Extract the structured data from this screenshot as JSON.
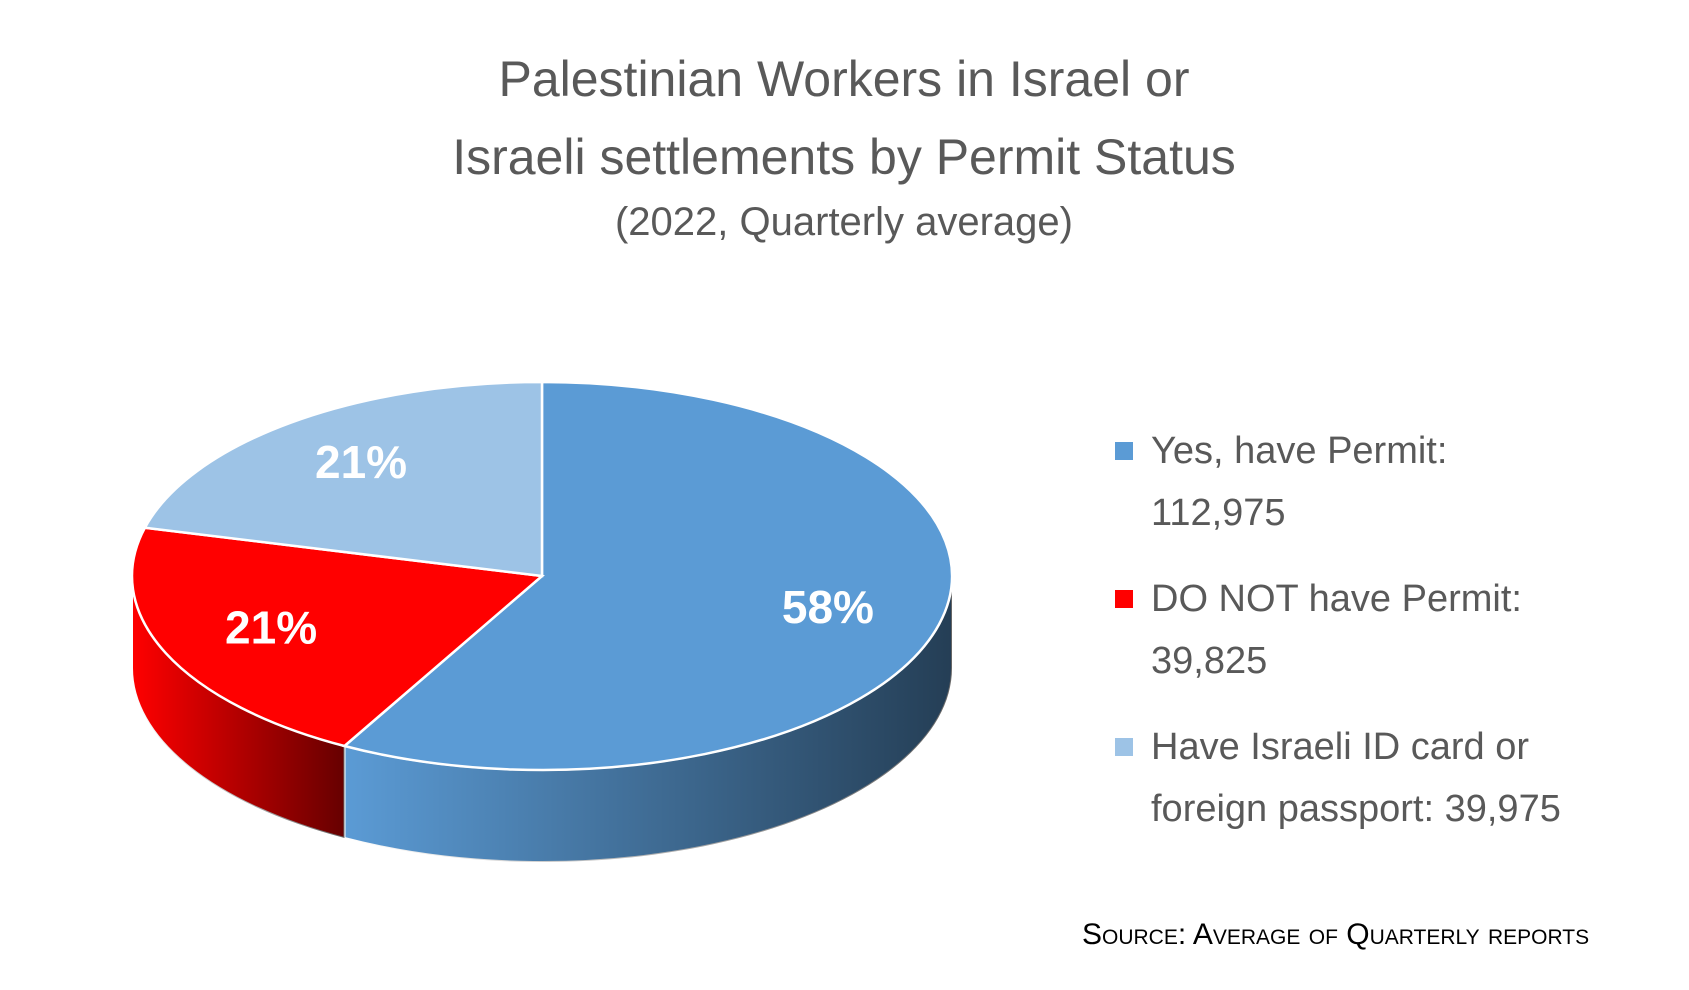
{
  "chart_data": {
    "type": "pie3d",
    "title": "Palestinian Workers in Israel or Israeli settlements by Permit Status",
    "subtitle": "(2022, Quarterly average)",
    "series": [
      {
        "name": "Yes, have Permit:\n112,975",
        "color": "#5b9bd5",
        "values": [
          58
        ],
        "value_labels": [
          "58%"
        ]
      },
      {
        "name": "DO NOT have Permit:\n39,825",
        "color": "#ff0000",
        "values": [
          21
        ],
        "value_labels": [
          "21%"
        ]
      },
      {
        "name": "Have Israeli ID card or\nforeign passport: 39,975",
        "color": "#9dc3e6",
        "values": [
          21
        ],
        "value_labels": [
          "21%"
        ]
      }
    ],
    "legend": "right",
    "source": "Source: Average of Quarterly reports"
  }
}
